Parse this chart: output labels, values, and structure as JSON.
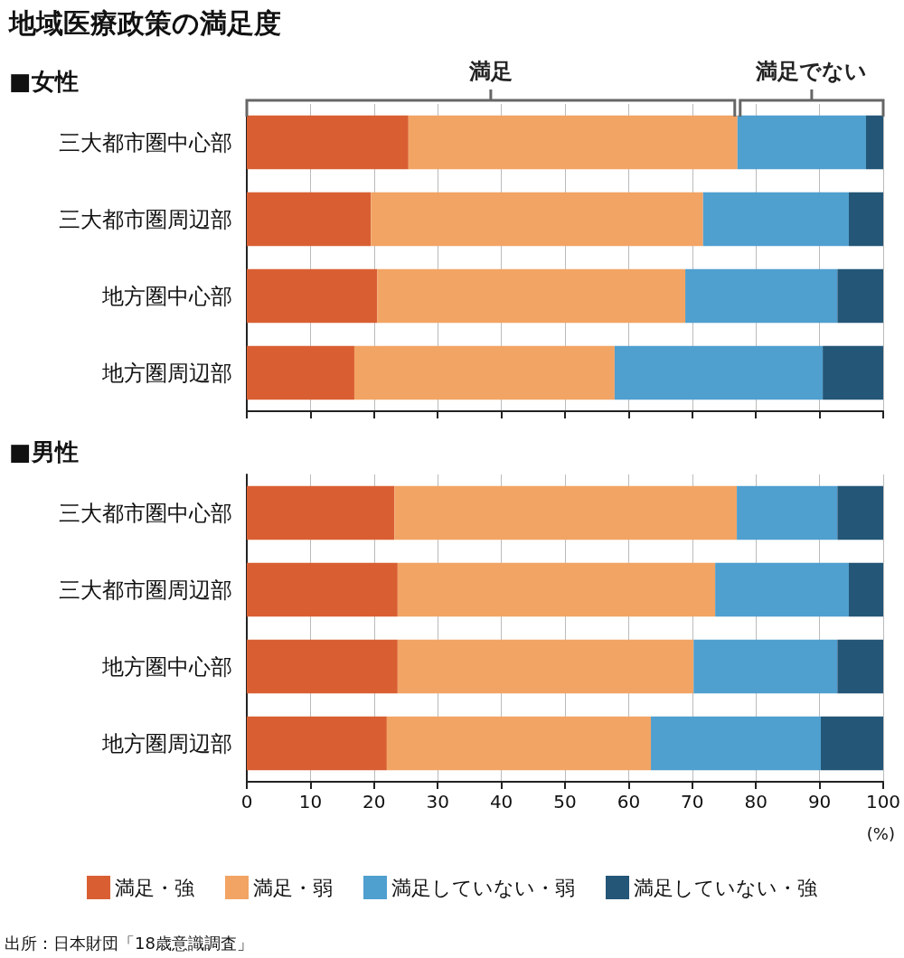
{
  "chart_data": [
    {
      "type": "bar",
      "title": "地域医療政策の満足度",
      "subtitle": "■女性",
      "orientation": "horizontal",
      "stacked": true,
      "categories": [
        "三大都市圏中心部",
        "三大都市圏周辺部",
        "地方圏中心部",
        "地方圏周辺部"
      ],
      "series": [
        {
          "color": "#d95f33",
          "values": [
            25.4,
            19.5,
            20.5,
            16.9
          ]
        },
        {
          "color": "#f2a464",
          "values": [
            51.7,
            52.2,
            48.4,
            40.9
          ]
        },
        {
          "color": "#4f9fcf",
          "values": [
            20.2,
            22.9,
            23.9,
            32.7
          ]
        },
        {
          "color": "#235677",
          "values": [
            2.7,
            5.4,
            7.2,
            9.5
          ]
        }
      ],
      "xlim": [
        0,
        100
      ],
      "xticks": [
        0,
        10,
        20,
        30,
        40,
        50,
        60,
        70,
        80,
        90,
        100
      ],
      "tick_labels": "y",
      "grid": "x",
      "legend": false,
      "annotations": [
        "満足",
        "満足でない"
      ]
    },
    {
      "type": "bar",
      "title": "■男性",
      "orientation": "horizontal",
      "stacked": true,
      "categories": [
        "三大都市圏中心部",
        "三大都市圏周辺部",
        "地方圏中心部",
        "地方圏周辺部"
      ],
      "series": [
        {
          "name": "満足・強",
          "color": "#d95f33",
          "values": [
            23.2,
            23.7,
            23.7,
            22.0
          ]
        },
        {
          "name": "満足・弱",
          "color": "#f2a464",
          "values": [
            53.8,
            49.9,
            46.5,
            41.5
          ]
        },
        {
          "name": "満足していない・弱",
          "color": "#4f9fcf",
          "values": [
            15.8,
            21.0,
            22.6,
            26.7
          ]
        },
        {
          "name": "満足していない・強",
          "color": "#235677",
          "values": [
            7.2,
            5.4,
            7.2,
            9.8
          ]
        }
      ],
      "xlim": [
        0,
        100
      ],
      "xticks": [
        0,
        10,
        20,
        30,
        40,
        50,
        60,
        70,
        80,
        90,
        100
      ],
      "xlabel": "(%)",
      "grid": "x",
      "legend": "bottom",
      "annotations": [
        "出所：日本財団「18歳意識調査」"
      ]
    }
  ]
}
